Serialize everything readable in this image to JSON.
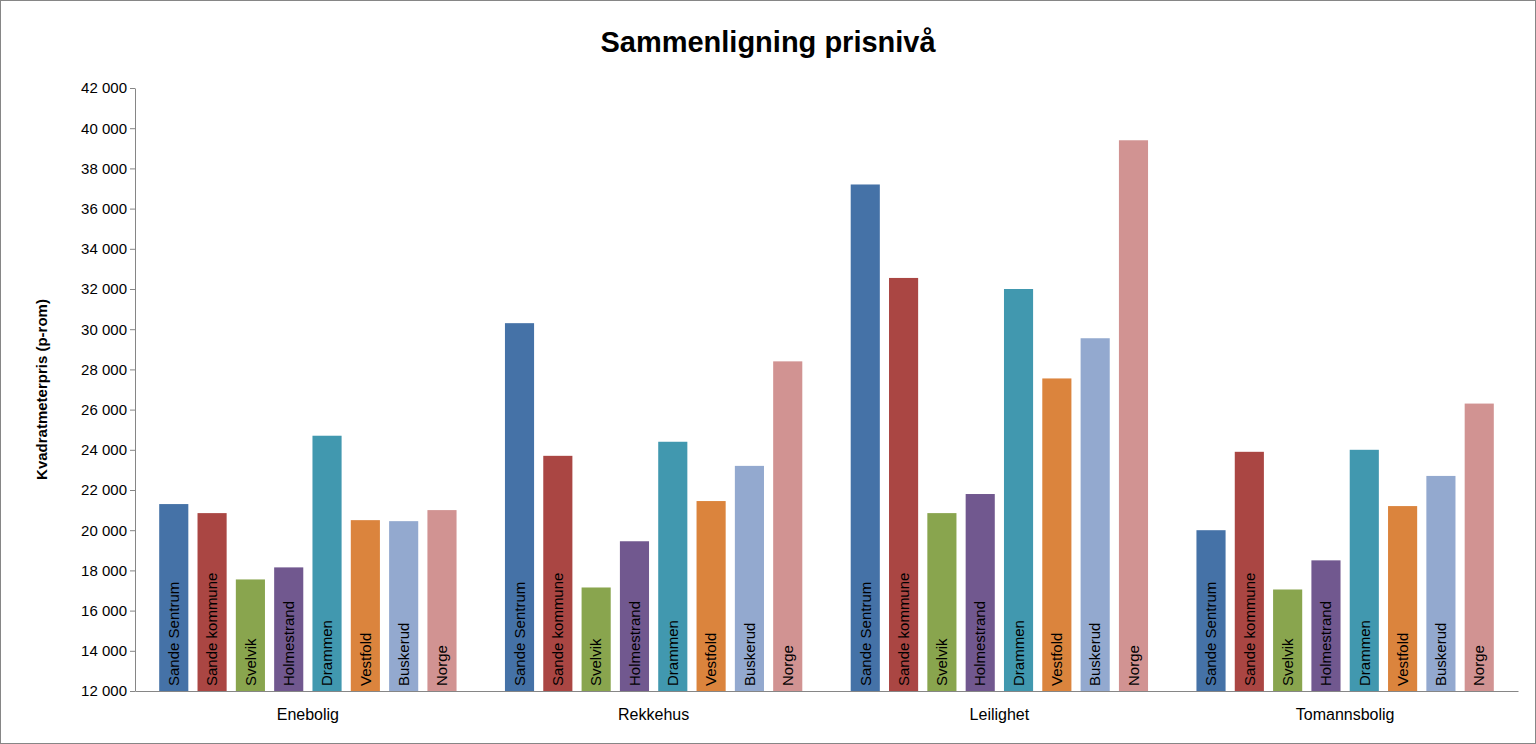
{
  "chart_data": {
    "type": "bar",
    "title": "Sammenligning prisnivå",
    "y_label": "Kvadratmeterpris (p-rom)",
    "categories": [
      "Enebolig",
      "Rekkehus",
      "Leilighet",
      "Tomannsbolig"
    ],
    "series": [
      {
        "name": "Sande Sentrum",
        "color": "#4572A7",
        "values": [
          21300,
          30300,
          37200,
          20000
        ]
      },
      {
        "name": "Sande kommune",
        "color": "#AA4643",
        "values": [
          20850,
          23700,
          32550,
          23900
        ]
      },
      {
        "name": "Svelvik",
        "color": "#89A54E",
        "values": [
          17550,
          17150,
          20850,
          17050
        ]
      },
      {
        "name": "Holmestrand",
        "color": "#71588F",
        "values": [
          18150,
          19450,
          21800,
          18500
        ]
      },
      {
        "name": "Drammen",
        "color": "#4198AF",
        "values": [
          24700,
          24400,
          32000,
          24000
        ]
      },
      {
        "name": "Vestfold",
        "color": "#DB843D",
        "values": [
          20500,
          21450,
          27550,
          21200
        ]
      },
      {
        "name": "Buskerud",
        "color": "#93A9CF",
        "values": [
          20450,
          23200,
          29550,
          22700
        ]
      },
      {
        "name": "Norge",
        "color": "#D19392",
        "values": [
          21000,
          28400,
          39400,
          26300
        ]
      }
    ],
    "ylim": [
      12000,
      42000
    ],
    "yticks": [
      {
        "value": 12000,
        "label": "12 000"
      },
      {
        "value": 14000,
        "label": "14 000"
      },
      {
        "value": 16000,
        "label": "16 000"
      },
      {
        "value": 18000,
        "label": "18 000"
      },
      {
        "value": 20000,
        "label": "20 000"
      },
      {
        "value": 22000,
        "label": "22 000"
      },
      {
        "value": 24000,
        "label": "24 000"
      },
      {
        "value": 26000,
        "label": "26 000"
      },
      {
        "value": 28000,
        "label": "28 000"
      },
      {
        "value": 30000,
        "label": "30 000"
      },
      {
        "value": 32000,
        "label": "32 000"
      },
      {
        "value": 34000,
        "label": "34 000"
      },
      {
        "value": 36000,
        "label": "36 000"
      },
      {
        "value": 38000,
        "label": "38 000"
      },
      {
        "value": 40000,
        "label": "40 000"
      },
      {
        "value": 42000,
        "label": "42 000"
      }
    ],
    "grid": false
  }
}
